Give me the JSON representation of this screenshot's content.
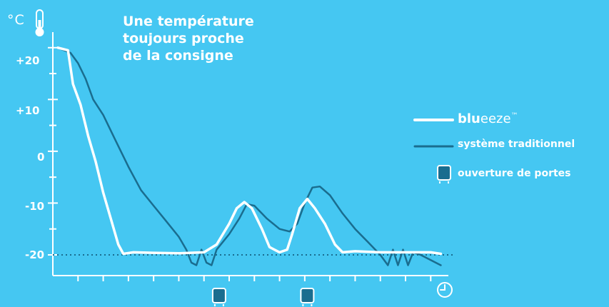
{
  "chart_data": {
    "type": "line",
    "title_lines": [
      "Une température",
      "toujours proche",
      "de la consigne"
    ],
    "y_unit": "°C",
    "y_ticks": [
      "+20",
      "+10",
      "0",
      "-10",
      "-20"
    ],
    "y_tick_values": [
      20,
      10,
      0,
      -10,
      -20
    ],
    "ylim": [
      -24,
      23
    ],
    "xlim": [
      0,
      15.7
    ],
    "setpoint": -20,
    "legend": {
      "blueeze_bold": "blu",
      "blueeze_light": "eeze",
      "blueeze_tm": "™",
      "traditional": "système traditionnel",
      "doors": "ouverture de portes"
    },
    "door_openings_x": [
      6.6,
      10.1
    ],
    "series": [
      {
        "key": "blueeze",
        "color": "#ffffff",
        "points": [
          [
            0.2,
            20
          ],
          [
            0.6,
            19.5
          ],
          [
            0.8,
            13
          ],
          [
            1.1,
            9
          ],
          [
            1.4,
            3
          ],
          [
            1.7,
            -2
          ],
          [
            2.0,
            -8
          ],
          [
            2.3,
            -13
          ],
          [
            2.6,
            -18
          ],
          [
            2.8,
            -19.8
          ],
          [
            3.2,
            -19.5
          ],
          [
            4.0,
            -19.6
          ],
          [
            5.0,
            -19.7
          ],
          [
            6.0,
            -19.5
          ],
          [
            6.5,
            -18
          ],
          [
            7.0,
            -14
          ],
          [
            7.3,
            -11
          ],
          [
            7.6,
            -9.8
          ],
          [
            7.9,
            -11
          ],
          [
            8.3,
            -15
          ],
          [
            8.6,
            -18.5
          ],
          [
            9.0,
            -19.5
          ],
          [
            9.3,
            -19
          ],
          [
            9.5,
            -16
          ],
          [
            9.8,
            -11
          ],
          [
            10.1,
            -9.2
          ],
          [
            10.4,
            -11
          ],
          [
            10.8,
            -14
          ],
          [
            11.2,
            -18
          ],
          [
            11.5,
            -19.5
          ],
          [
            12.0,
            -19.3
          ],
          [
            13.0,
            -19.5
          ],
          [
            14.0,
            -19.5
          ],
          [
            15.0,
            -19.5
          ],
          [
            15.4,
            -19.8
          ]
        ]
      },
      {
        "key": "traditional",
        "color": "#1a6d8f",
        "points": [
          [
            0.2,
            20
          ],
          [
            0.7,
            19
          ],
          [
            1.0,
            17
          ],
          [
            1.3,
            14
          ],
          [
            1.6,
            10
          ],
          [
            2.0,
            7
          ],
          [
            2.5,
            2
          ],
          [
            3.0,
            -3
          ],
          [
            3.5,
            -7.5
          ],
          [
            4.0,
            -10.5
          ],
          [
            4.5,
            -13.5
          ],
          [
            5.0,
            -16.5
          ],
          [
            5.3,
            -19
          ],
          [
            5.5,
            -21.5
          ],
          [
            5.7,
            -22
          ],
          [
            5.9,
            -19
          ],
          [
            6.1,
            -21.5
          ],
          [
            6.3,
            -22
          ],
          [
            6.5,
            -19
          ],
          [
            7.0,
            -16
          ],
          [
            7.4,
            -13
          ],
          [
            7.7,
            -10.2
          ],
          [
            8.0,
            -10.5
          ],
          [
            8.5,
            -13
          ],
          [
            9.0,
            -15
          ],
          [
            9.4,
            -15.5
          ],
          [
            9.7,
            -14
          ],
          [
            10.0,
            -10
          ],
          [
            10.3,
            -7
          ],
          [
            10.6,
            -6.8
          ],
          [
            11.0,
            -8.5
          ],
          [
            11.5,
            -12
          ],
          [
            12.0,
            -15
          ],
          [
            12.5,
            -17.5
          ],
          [
            13.0,
            -20
          ],
          [
            13.3,
            -22
          ],
          [
            13.5,
            -19
          ],
          [
            13.7,
            -22
          ],
          [
            13.9,
            -19
          ],
          [
            14.1,
            -22
          ],
          [
            14.3,
            -19.5
          ],
          [
            14.6,
            -20
          ],
          [
            15.0,
            -21
          ],
          [
            15.4,
            -22
          ]
        ]
      }
    ]
  }
}
